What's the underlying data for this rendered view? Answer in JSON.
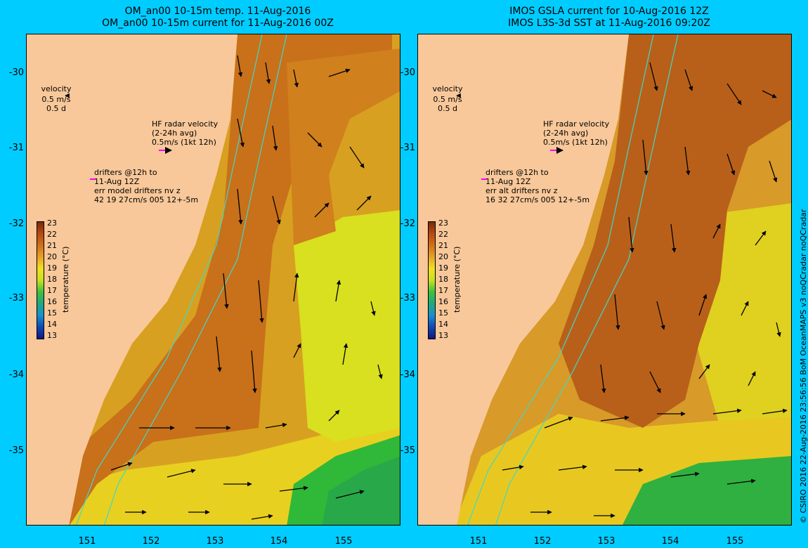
{
  "left_title": {
    "line1": "OM_an00 10-15m temp. 11-Aug-2016",
    "line2": "OM_an00 10-15m current for 11-Aug-2016 00Z"
  },
  "right_title": {
    "line1": "IMOS GSLA current for 10-Aug-2016 12Z",
    "line2": "IMOS L3S-3d SST at 11-Aug-2016 09:20Z"
  },
  "lat_ticks": [
    "-30",
    "-31",
    "-32",
    "-33",
    "-34",
    "-35"
  ],
  "lon_ticks": [
    "151",
    "152",
    "153",
    "154",
    "155"
  ],
  "left_annotations": {
    "velocity": "velocity",
    "velocity_scale": "0.5 m/s",
    "velocity_days": "0.5 d",
    "hf_radar_1": "HF radar velocity",
    "hf_radar_2": "(2-24h avg)",
    "hf_radar_3": "0.5m/s (1kt 12h)",
    "drifters_1": "drifters @12h to",
    "drifters_2": "11-Aug 12Z",
    "drifters_3": "err model drifters nv z",
    "drifters_4": "42 19 27cm/s 005 12+-5m"
  },
  "right_annotations": {
    "velocity": "velocity",
    "velocity_scale": "0.5 m/s",
    "velocity_days": "0.5 d",
    "hf_radar_1": "HF radar velocity",
    "hf_radar_2": "(2-24h avg)",
    "hf_radar_3": "0.5m/s (1kt 12h)",
    "drifters_1": "drifters @12h to",
    "drifters_2": "11-Aug 12Z",
    "drifters_3": "err alt drifters nv z",
    "drifters_4": "16 32 27cm/s 005 12+-5m"
  },
  "colorbar": {
    "title": "temperature (°C)",
    "labels": [
      "23",
      "22",
      "21",
      "20",
      "19",
      "18",
      "17",
      "16",
      "15",
      "14",
      "13"
    ]
  },
  "credit": "© CSIRO 2016  22-Aug-2016 23:56:56 BoM OceanMAPS v3 noQCradar noQCradar",
  "colors": {
    "background": "#00ccff",
    "land": "#f8c89a",
    "warm": "#d0761a",
    "orange": "#e8a030",
    "yellow": "#f0e020",
    "green": "#33c23a",
    "contour": "#40d8c8",
    "hf_arrow": "#ff00ff"
  }
}
